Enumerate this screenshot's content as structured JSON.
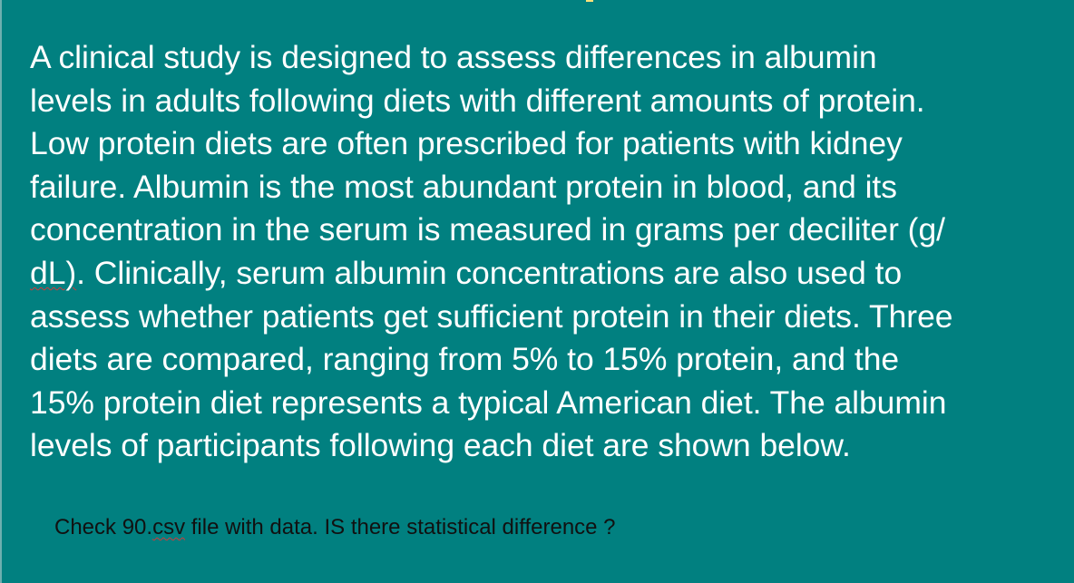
{
  "paragraph": {
    "lines": [
      "A clinical study is designed to assess differences in albumin",
      "levels in adults following diets with different amounts of protein.",
      "Low protein diets are often prescribed for patients with kidney",
      "failure. Albumin is the most abundant protein in blood, and its",
      "concentration in the serum is measured in grams per deciliter (g/",
      ". Clinically, serum albumin concentrations are also used to",
      "assess whether patients get sufficient protein in their diets. Three",
      "diets are compared, ranging from 5% to 15% protein, and the",
      "15% protein diet represents a typical American diet. The albumin",
      "levels of participants following each diet are shown below."
    ],
    "unit_fragment": "dL)"
  },
  "note": {
    "before": "Check 90.",
    "flagged_word": "csv",
    "after": " file with data. IS there statistical difference ?"
  },
  "colors": {
    "background": "#018080",
    "text": "#ffffff",
    "note_text": "#111111",
    "spellcheck": "#d23a3a"
  }
}
